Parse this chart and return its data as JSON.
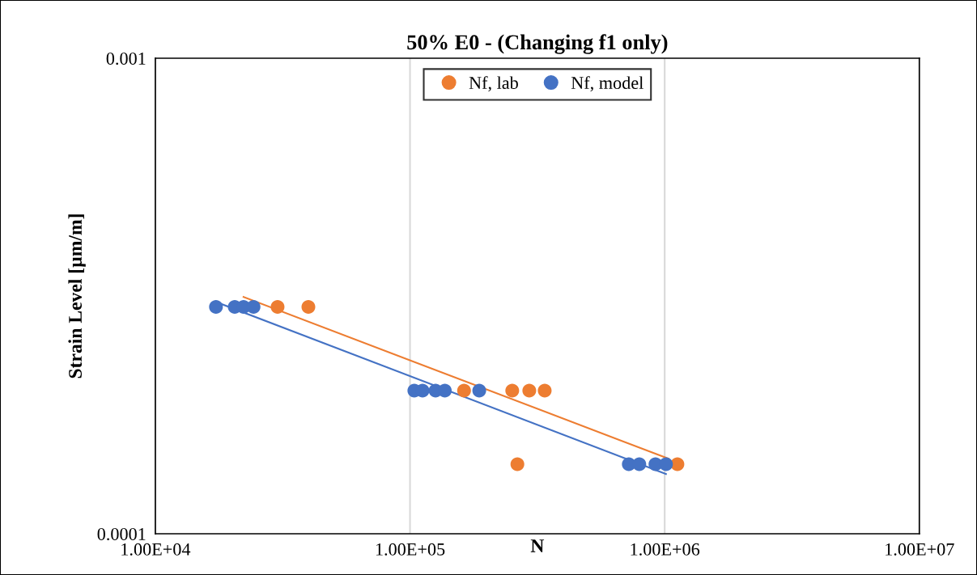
{
  "chart_data": {
    "type": "scatter",
    "title": "50% E0 - (Changing f1 only)",
    "xlabel": "N",
    "ylabel": "Strain Level [µm/m]",
    "log": "xy",
    "xlim": [
      10000,
      10000000
    ],
    "ylim": [
      0.0001,
      0.001
    ],
    "xticks": [
      {
        "value": 10000,
        "label": "1.00E+04"
      },
      {
        "value": 100000,
        "label": "1.00E+05"
      },
      {
        "value": 1000000,
        "label": "1.00E+06"
      },
      {
        "value": 10000000,
        "label": "1.00E+07"
      }
    ],
    "yticks": [
      0.0001,
      0.001
    ],
    "grid": "x",
    "legend": "top",
    "marker": "circle",
    "series": [
      {
        "name": "Nf, lab",
        "color": "#ed7d31",
        "x": [
          30200,
          39900,
          163000,
          252000,
          294000,
          338000,
          264000,
          1122000
        ],
        "values": [
          0.0003,
          0.0003,
          0.0002,
          0.0002,
          0.0002,
          0.0002,
          0.00014,
          0.00014
        ]
      },
      {
        "name": "Nf, model",
        "color": "#4472c4",
        "x": [
          17300,
          20500,
          22200,
          24300,
          104000,
          112000,
          126000,
          137000,
          187000,
          723000,
          795000,
          920000,
          1012000
        ],
        "values": [
          0.0003,
          0.0003,
          0.0003,
          0.0003,
          0.0002,
          0.0002,
          0.0002,
          0.0002,
          0.0002,
          0.00014,
          0.00014,
          0.00014,
          0.00014
        ]
      },
      {
        "type": "line",
        "marker": "none",
        "color": "#ed7d31",
        "x": [
          22200,
          1035000
        ],
        "values": [
          0.0003148,
          0.0001439
        ]
      },
      {
        "type": "line",
        "marker": "none",
        "color": "#4472c4",
        "x": [
          17200,
          1012000
        ],
        "values": [
          0.0003076,
          0.0001336
        ]
      }
    ]
  }
}
